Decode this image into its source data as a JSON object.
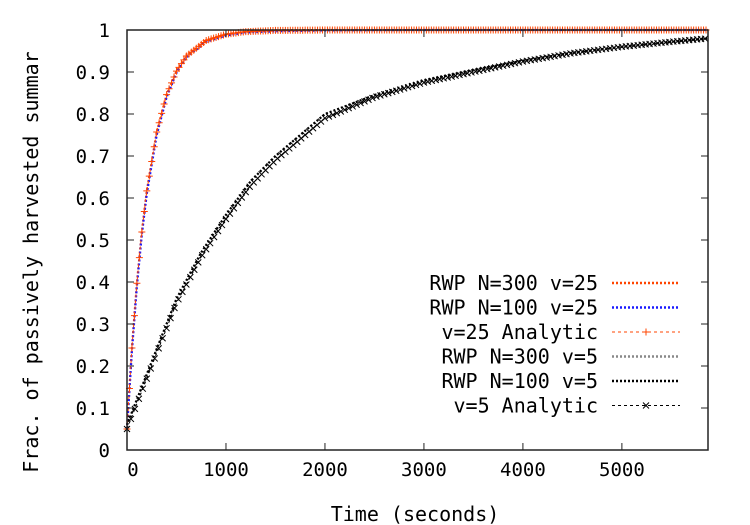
{
  "chart_data": {
    "type": "line",
    "title": "",
    "xlabel": "Time (seconds)",
    "ylabel": "Frac. of passively harvested summar",
    "xlim": [
      0,
      5870
    ],
    "ylim": [
      0,
      1
    ],
    "xticks": [
      "0",
      "1000",
      "2000",
      "3000",
      "4000",
      "5000"
    ],
    "xtick_values": [
      0,
      1000,
      2000,
      3000,
      4000,
      5000
    ],
    "yticks": [
      "0",
      "0.1",
      "0.2",
      "0.3",
      "0.4",
      "0.5",
      "0.6",
      "0.7",
      "0.8",
      "0.9",
      "1"
    ],
    "ytick_values": [
      0,
      0.1,
      0.2,
      0.3,
      0.4,
      0.5,
      0.6,
      0.7,
      0.8,
      0.9,
      1
    ],
    "grid": false,
    "legend_position": "bottom-right",
    "series": [
      {
        "name": "RWP N=300 v=25",
        "color": "#ff4500",
        "style": "dotted",
        "marker": "none",
        "x": [
          0,
          50,
          100,
          150,
          200,
          300,
          400,
          500,
          600,
          800,
          1000,
          1200,
          1500,
          2000,
          3000,
          4000,
          5000,
          5870
        ],
        "y": [
          0.05,
          0.243,
          0.397,
          0.519,
          0.617,
          0.757,
          0.846,
          0.902,
          0.938,
          0.975,
          0.99,
          0.996,
          0.999,
          1,
          1,
          1,
          1,
          1
        ]
      },
      {
        "name": "RWP N=100 v=25",
        "color": "#1a1aff",
        "style": "dotted",
        "marker": "none",
        "x": [
          0,
          50,
          100,
          150,
          200,
          300,
          400,
          500,
          600,
          800,
          1000,
          1200,
          1500,
          2000,
          3000,
          4000,
          5000,
          5870
        ],
        "y": [
          0.05,
          0.235,
          0.39,
          0.512,
          0.61,
          0.75,
          0.84,
          0.898,
          0.935,
          0.972,
          0.987,
          0.994,
          0.997,
          0.999,
          1,
          1,
          1,
          1
        ]
      },
      {
        "name": "v=25 Analytic",
        "color": "#ff4500",
        "style": "dashed",
        "marker": "plus",
        "x": [
          0,
          50,
          100,
          150,
          200,
          300,
          400,
          500,
          600,
          800,
          1000,
          1200,
          1500,
          2000,
          3000,
          4000,
          5000,
          5870
        ],
        "y": [
          0.05,
          0.243,
          0.397,
          0.519,
          0.617,
          0.757,
          0.846,
          0.902,
          0.938,
          0.975,
          0.99,
          0.996,
          0.999,
          1,
          1,
          1,
          1,
          1
        ]
      },
      {
        "name": "RWP N=300 v=5",
        "color": "#888888",
        "style": "dotted",
        "marker": "none",
        "x": [
          0,
          250,
          500,
          750,
          1000,
          1250,
          1500,
          2000,
          2500,
          3000,
          3500,
          4000,
          4500,
          5000,
          5500,
          5870
        ],
        "y": [
          0.06,
          0.21,
          0.36,
          0.47,
          0.56,
          0.64,
          0.7,
          0.8,
          0.845,
          0.88,
          0.905,
          0.927,
          0.946,
          0.96,
          0.972,
          0.98
        ]
      },
      {
        "name": "RWP N=100 v=5",
        "color": "#000000",
        "style": "dotted",
        "marker": "none",
        "x": [
          0,
          250,
          500,
          750,
          1000,
          1250,
          1500,
          2000,
          2500,
          3000,
          3500,
          4000,
          4500,
          5000,
          5500,
          5870
        ],
        "y": [
          0.06,
          0.21,
          0.36,
          0.47,
          0.56,
          0.64,
          0.7,
          0.8,
          0.845,
          0.88,
          0.905,
          0.927,
          0.946,
          0.96,
          0.972,
          0.98
        ]
      },
      {
        "name": "v=5 Analytic",
        "color": "#000000",
        "style": "dashed",
        "marker": "cross",
        "x": [
          0,
          250,
          500,
          750,
          1000,
          1250,
          1500,
          2000,
          2500,
          3000,
          3500,
          4000,
          4500,
          5000,
          5500,
          5870
        ],
        "y": [
          0.05,
          0.2,
          0.35,
          0.46,
          0.55,
          0.63,
          0.69,
          0.79,
          0.84,
          0.875,
          0.9,
          0.925,
          0.945,
          0.96,
          0.972,
          0.98
        ]
      }
    ]
  }
}
